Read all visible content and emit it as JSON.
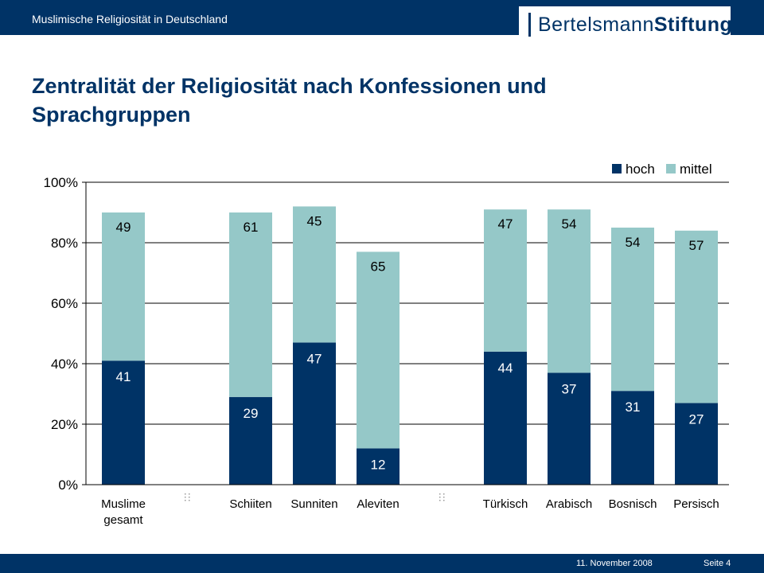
{
  "header": {
    "section_title": "Muslimische Religiosität in Deutschland",
    "logo_regular": "Bertelsmann",
    "logo_bold": "Stiftung"
  },
  "slide": {
    "title": "Zentralität der Religiosität nach Konfessionen und Sprachgruppen"
  },
  "footer": {
    "date": "11. November 2008",
    "page": "Seite 4"
  },
  "colors": {
    "brand": "#003366",
    "hoch": "#003366",
    "mittel": "#95C8C8"
  },
  "chart_data": {
    "type": "bar",
    "stacked": true,
    "categories": [
      "Muslime gesamt",
      "",
      "Schiiten",
      "Sunniten",
      "Aleviten",
      "",
      "Türkisch",
      "Arabisch",
      "Bosnisch",
      "Persisch"
    ],
    "series": [
      {
        "name": "hoch",
        "color": "#003366",
        "values": [
          41,
          null,
          29,
          47,
          12,
          null,
          44,
          37,
          31,
          27
        ]
      },
      {
        "name": "mittel",
        "color": "#95C8C8",
        "values": [
          49,
          null,
          61,
          45,
          65,
          null,
          47,
          54,
          54,
          57
        ]
      }
    ],
    "ylim": [
      0,
      100
    ],
    "yticks": [
      "0%",
      "20%",
      "40%",
      "60%",
      "80%",
      "100%"
    ],
    "ytick_values": [
      0,
      20,
      40,
      60,
      80,
      100
    ],
    "grid": true,
    "legend_position": "top-right"
  }
}
